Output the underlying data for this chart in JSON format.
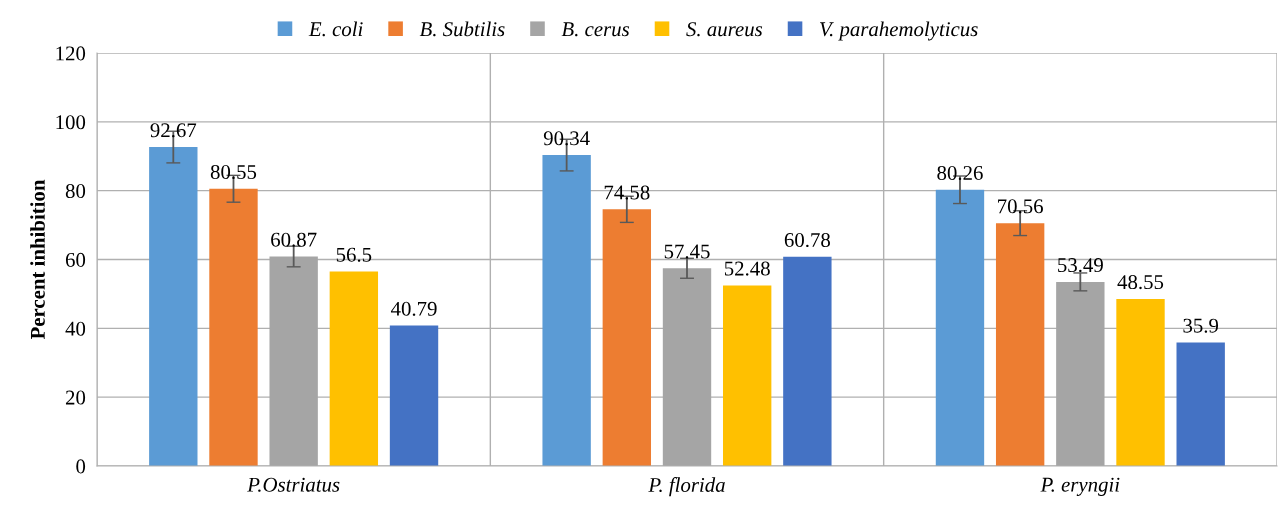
{
  "chart_data": {
    "type": "bar",
    "ylabel": "Percent inhibition",
    "categories": [
      "P.Ostriatus",
      "P. florida",
      "P. eryngii"
    ],
    "series": [
      {
        "name": "E. coli",
        "color": "#5b9bd5",
        "values": [
          92.67,
          90.34,
          80.26
        ],
        "errors": [
          4.6,
          4.6,
          4
        ]
      },
      {
        "name": "B. Subtilis",
        "color": "#ed7d31",
        "values": [
          80.55,
          74.58,
          70.56
        ],
        "errors": [
          3.9,
          3.8,
          3.6
        ]
      },
      {
        "name": "B. cerus",
        "color": "#a5a5a5",
        "values": [
          60.87,
          57.45,
          53.49
        ],
        "errors": [
          3,
          2.9,
          2.6
        ]
      },
      {
        "name": "S. aureus",
        "color": "#ffc000",
        "values": [
          56.5,
          52.48,
          48.55
        ]
      },
      {
        "name": "V. parahemolyticus",
        "color": "#4472c4",
        "values": [
          40.79,
          60.78,
          35.9
        ]
      }
    ],
    "ylim": [
      0,
      120
    ],
    "yticks": [
      0,
      20,
      40,
      60,
      80,
      100,
      120
    ],
    "grid": true,
    "legend": "top",
    "data_labels": true
  }
}
